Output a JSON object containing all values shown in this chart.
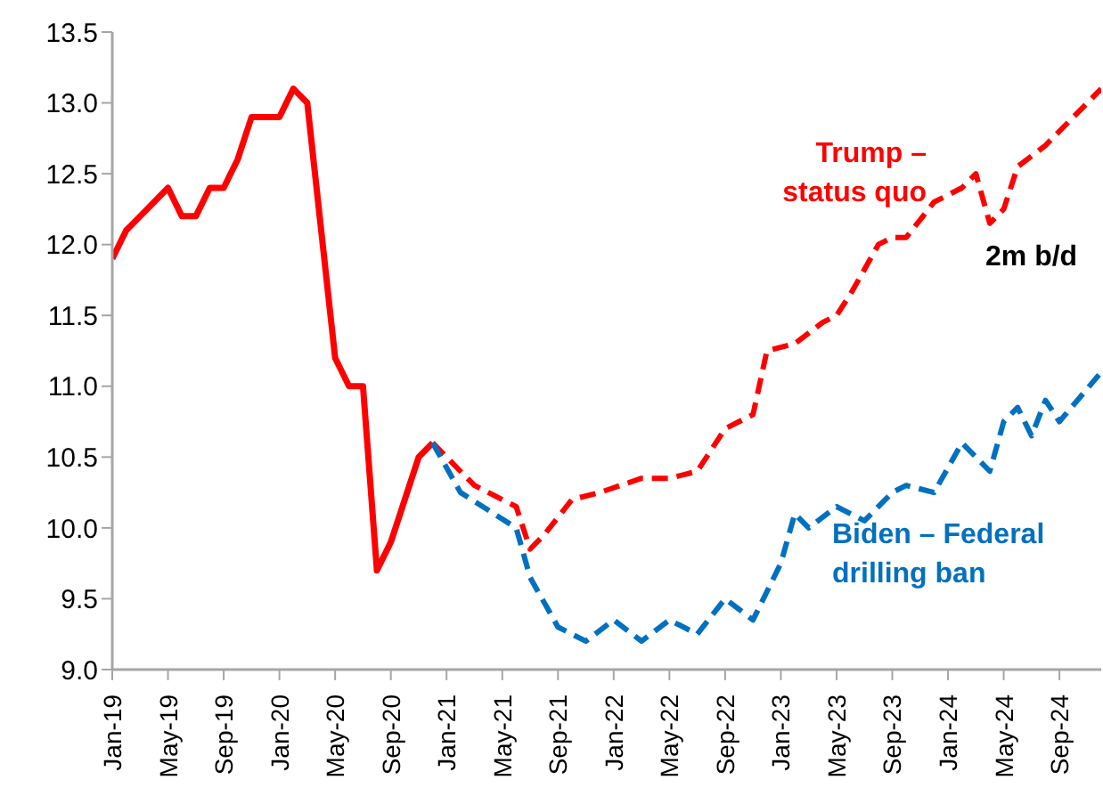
{
  "chart_data": {
    "type": "line",
    "xlim": [
      "2019-01",
      "2024-12"
    ],
    "xticks": [
      {
        "value": "2019-01",
        "label": "Jan-19"
      },
      {
        "value": "2019-05",
        "label": "May-19"
      },
      {
        "value": "2019-09",
        "label": "Sep-19"
      },
      {
        "value": "2020-01",
        "label": "Jan-20"
      },
      {
        "value": "2020-05",
        "label": "May-20"
      },
      {
        "value": "2020-09",
        "label": "Sep-20"
      },
      {
        "value": "2021-01",
        "label": "Jan-21"
      },
      {
        "value": "2021-05",
        "label": "May-21"
      },
      {
        "value": "2021-09",
        "label": "Sep-21"
      },
      {
        "value": "2022-01",
        "label": "Jan-22"
      },
      {
        "value": "2022-05",
        "label": "May-22"
      },
      {
        "value": "2022-09",
        "label": "Sep-22"
      },
      {
        "value": "2023-01",
        "label": "Jan-23"
      },
      {
        "value": "2023-05",
        "label": "May-23"
      },
      {
        "value": "2023-09",
        "label": "Sep-23"
      },
      {
        "value": "2024-01",
        "label": "Jan-24"
      },
      {
        "value": "2024-05",
        "label": "May-24"
      },
      {
        "value": "2024-09",
        "label": "Sep-24"
      }
    ],
    "ylim": [
      9,
      13.5
    ],
    "yticks": [
      {
        "value": 9,
        "label": "9.0"
      },
      {
        "value": 9.5,
        "label": "9.5"
      },
      {
        "value": 10,
        "label": "10.0"
      },
      {
        "value": 10.5,
        "label": "10.5"
      },
      {
        "value": 11,
        "label": "11.0"
      },
      {
        "value": 11.5,
        "label": "11.5"
      },
      {
        "value": 12,
        "label": "12.0"
      },
      {
        "value": 12.5,
        "label": "12.5"
      },
      {
        "value": 13,
        "label": "13.0"
      },
      {
        "value": 13.5,
        "label": "13.5"
      }
    ],
    "grid": false,
    "legend": false,
    "marker": "none",
    "annotations": [
      "2m b/d"
    ],
    "series": [
      {
        "color": "#ff0000",
        "line_style": "solid",
        "x": [
          "2019-01",
          "2019-02",
          "2019-03",
          "2019-04",
          "2019-05",
          "2019-06",
          "2019-07",
          "2019-08",
          "2019-09",
          "2019-10",
          "2019-11",
          "2020-01",
          "2020-02",
          "2020-03",
          "2020-05",
          "2020-06",
          "2020-07",
          "2020-08",
          "2020-09",
          "2020-11",
          "2020-12"
        ],
        "values": [
          11.9,
          12.1,
          12.2,
          12.3,
          12.4,
          12.2,
          12.2,
          12.4,
          12.4,
          12.6,
          12.9,
          12.9,
          13.1,
          13.0,
          11.2,
          11.0,
          11.0,
          9.7,
          9.9,
          10.5,
          10.6
        ]
      },
      {
        "name": "Trump – status quo",
        "color": "#ff0000",
        "line_style": "dashed",
        "x": [
          "2020-12",
          "2021-03",
          "2021-06",
          "2021-07",
          "2021-08",
          "2021-10",
          "2021-12",
          "2022-03",
          "2022-05",
          "2022-07",
          "2022-08",
          "2022-09",
          "2022-11",
          "2022-12",
          "2023-02",
          "2023-04",
          "2023-05",
          "2023-06",
          "2023-08",
          "2023-09",
          "2023-10",
          "2023-12",
          "2024-02",
          "2024-03",
          "2024-04",
          "2024-05",
          "2024-06",
          "2024-08",
          "2024-10",
          "2024-12"
        ],
        "values": [
          10.6,
          10.3,
          10.15,
          9.85,
          9.95,
          10.2,
          10.25,
          10.35,
          10.35,
          10.4,
          10.55,
          10.7,
          10.8,
          11.25,
          11.3,
          11.45,
          11.5,
          11.65,
          12.0,
          12.05,
          12.05,
          12.3,
          12.4,
          12.5,
          12.15,
          12.25,
          12.55,
          12.7,
          12.9,
          13.1
        ]
      },
      {
        "name": "Biden – Federal drilling ban",
        "color": "#0070c0",
        "line_style": "dashed",
        "x": [
          "2020-12",
          "2021-02",
          "2021-06",
          "2021-07",
          "2021-09",
          "2021-11",
          "2022-01",
          "2022-03",
          "2022-05",
          "2022-07",
          "2022-09",
          "2022-11",
          "2023-01",
          "2023-02",
          "2023-03",
          "2023-05",
          "2023-07",
          "2023-09",
          "2023-10",
          "2023-12",
          "2024-02",
          "2024-04",
          "2024-05",
          "2024-06",
          "2024-07",
          "2024-08",
          "2024-09",
          "2024-12"
        ],
        "values": [
          10.6,
          10.25,
          10.0,
          9.65,
          9.3,
          9.2,
          9.35,
          9.2,
          9.35,
          9.25,
          9.5,
          9.35,
          9.75,
          10.1,
          10.0,
          10.15,
          10.05,
          10.25,
          10.3,
          10.25,
          10.6,
          10.4,
          10.75,
          10.85,
          10.65,
          10.9,
          10.75,
          11.1
        ]
      }
    ]
  }
}
